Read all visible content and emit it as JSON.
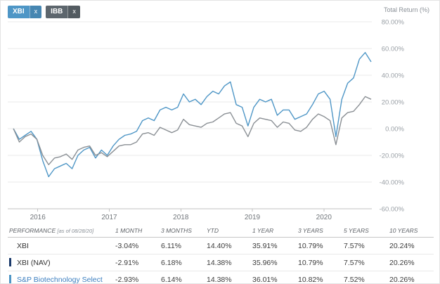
{
  "tickers": [
    {
      "label": "XBI",
      "remove_label": "x",
      "color": "#4e96c6"
    },
    {
      "label": "IBB",
      "remove_label": "x",
      "color": "#5d666d"
    }
  ],
  "chart": {
    "axis_title": "Total Return (%)"
  },
  "chart_data": {
    "type": "line",
    "title": "Total Return (%) comparison of XBI vs IBB",
    "ylabel": "Total Return (%)",
    "ylim": [
      -60,
      80
    ],
    "yticks": [
      80,
      60,
      40,
      20,
      0,
      -20,
      -40,
      -60
    ],
    "ytick_labels": [
      "80.00%",
      "60.00%",
      "40.00%",
      "20.00%",
      "0.00%",
      "-20.00%",
      "-40.00%",
      "-60.00%"
    ],
    "x_domain": [
      2015.58,
      2020.67
    ],
    "data_start": 2015.66,
    "data_end": 2020.66,
    "xticks": [
      2016,
      2017,
      2018,
      2019,
      2020
    ],
    "xtick_labels": [
      "2016",
      "2017",
      "2018",
      "2019",
      "2020"
    ],
    "grid": true,
    "legend_position": "none",
    "series": [
      {
        "name": "XBI",
        "color": "#4e96c6",
        "values": [
          0,
          -8,
          -5,
          -2,
          -8,
          -24,
          -36,
          -30,
          -28,
          -26,
          -30,
          -20,
          -16,
          -14,
          -22,
          -16,
          -20,
          -13,
          -8,
          -5,
          -4,
          -2,
          6,
          8,
          6,
          14,
          16,
          14,
          16,
          26,
          20,
          22,
          18,
          24,
          28,
          26,
          32,
          35,
          18,
          16,
          2,
          16,
          22,
          20,
          22,
          10,
          14,
          14,
          7,
          9,
          11,
          18,
          26,
          28,
          22,
          -6,
          22,
          34,
          38,
          52,
          57,
          50
        ]
      },
      {
        "name": "IBB",
        "color": "#8a8f94",
        "values": [
          0,
          -10,
          -6,
          -4,
          -8,
          -20,
          -27,
          -22,
          -21,
          -19,
          -23,
          -16,
          -14,
          -13,
          -20,
          -18,
          -21,
          -17,
          -13,
          -12,
          -12,
          -10,
          -4,
          -3,
          -5,
          1,
          -1,
          -3,
          -1,
          7,
          3,
          2,
          1,
          4,
          5,
          8,
          11,
          12,
          4,
          2,
          -6,
          4,
          8,
          7,
          6,
          1,
          5,
          4,
          -1,
          -2,
          1,
          7,
          11,
          9,
          6,
          -12,
          8,
          12,
          13,
          18,
          24,
          22
        ]
      }
    ]
  },
  "table": {
    "header": {
      "performance": "PERFORMANCE",
      "as_of": "[as of 08/28/20]",
      "columns": [
        "1 MONTH",
        "3 MONTHS",
        "YTD",
        "1 YEAR",
        "3 YEARS",
        "5 YEARS",
        "10 YEARS"
      ]
    },
    "rows": [
      {
        "label": "XBI",
        "marker": null,
        "label_color": "#333333",
        "values": [
          "-3.04%",
          "6.11%",
          "14.40%",
          "35.91%",
          "10.79%",
          "7.57%",
          "20.24%"
        ]
      },
      {
        "label": "XBI (NAV)",
        "marker": "#1b3a6b",
        "label_color": "#333333",
        "values": [
          "-2.91%",
          "6.18%",
          "14.38%",
          "35.96%",
          "10.79%",
          "7.57%",
          "20.26%"
        ]
      },
      {
        "label": "S&P Biotechnology Select",
        "marker": "#4e96c6",
        "label_color": "#3c7fc0",
        "values": [
          "-2.93%",
          "6.14%",
          "14.38%",
          "36.01%",
          "10.82%",
          "7.52%",
          "20.26%"
        ]
      }
    ]
  }
}
